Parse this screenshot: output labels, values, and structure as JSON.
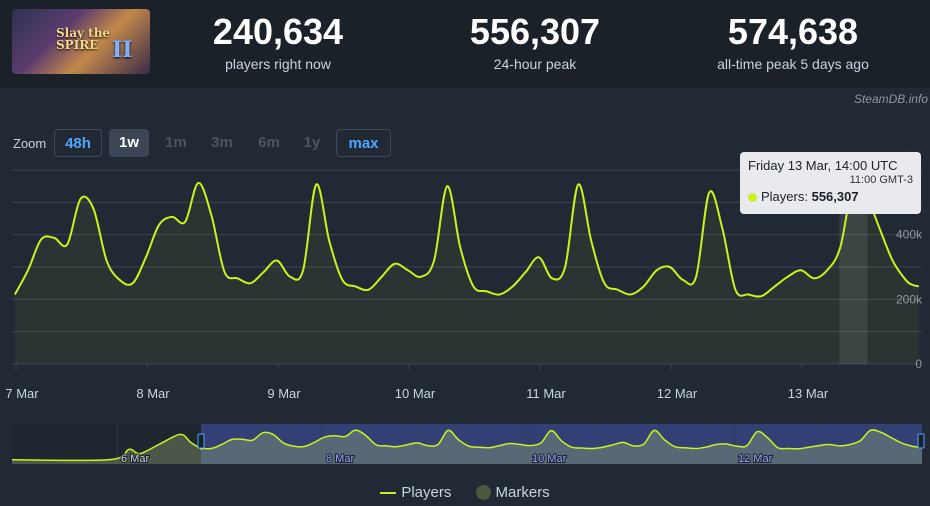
{
  "game": {
    "thumb_title": "Slay the SPIRE",
    "thumb_numeral": "II"
  },
  "stats": [
    {
      "value": "240,634",
      "label": "players right now"
    },
    {
      "value": "556,307",
      "label": "24-hour peak"
    },
    {
      "value": "574,638",
      "label": "all-time peak 5 days ago"
    }
  ],
  "source": "SteamDB.info",
  "zoom": {
    "label": "Zoom",
    "options": [
      {
        "label": "48h",
        "state": "link"
      },
      {
        "label": "1w",
        "state": "active"
      },
      {
        "label": "1m",
        "state": "dim"
      },
      {
        "label": "3m",
        "state": "dim"
      },
      {
        "label": "6m",
        "state": "dim"
      },
      {
        "label": "1y",
        "state": "dim"
      },
      {
        "label": "max",
        "state": "link"
      }
    ]
  },
  "tooltip": {
    "date": "Friday 13 Mar, 14:00 UTC",
    "local": "11:00 GMT-3",
    "series": "Players",
    "value": "556,307"
  },
  "legend": {
    "players": "Players",
    "markers": "Markers"
  },
  "colors": {
    "line": "#c9f31d",
    "background": "#212934",
    "navigator_selection": "#3a4a8c"
  },
  "chart_data": {
    "type": "line",
    "xlabel": "",
    "ylabel": "",
    "x_ticks": [
      "7 Mar",
      "8 Mar",
      "9 Mar",
      "10 Mar",
      "11 Mar",
      "12 Mar",
      "13 Mar"
    ],
    "y_ticks": [
      "0",
      "200k",
      "400k"
    ],
    "ylim": [
      0,
      600000
    ],
    "grid": true,
    "series": [
      {
        "name": "Players",
        "x_days": [
          -0.2,
          -0.1,
          0.0,
          0.1,
          0.2,
          0.3,
          0.4,
          0.5,
          0.6,
          0.7,
          0.8,
          0.9,
          1.0,
          1.1,
          1.2,
          1.3,
          1.4,
          1.5,
          1.6,
          1.7,
          1.8,
          1.9,
          2.0,
          2.1,
          2.2,
          2.3,
          2.4,
          2.5,
          2.6,
          2.7,
          2.8,
          2.9,
          3.0,
          3.1,
          3.2,
          3.3,
          3.4,
          3.5,
          3.6,
          3.7,
          3.8,
          3.9,
          4.0,
          4.1,
          4.2,
          4.3,
          4.4,
          4.5,
          4.6,
          4.7,
          4.8,
          4.9,
          5.0,
          5.1,
          5.2,
          5.3,
          5.4,
          5.5,
          5.6,
          5.7,
          5.8,
          5.9,
          6.0,
          6.1,
          6.2,
          6.3,
          6.4,
          6.5,
          6.6,
          6.7,
          6.75,
          6.8
        ],
        "values": [
          220000,
          215000,
          290000,
          385000,
          390000,
          370000,
          510000,
          480000,
          320000,
          260000,
          250000,
          330000,
          430000,
          455000,
          440000,
          560000,
          460000,
          285000,
          265000,
          250000,
          285000,
          320000,
          270000,
          290000,
          555000,
          380000,
          260000,
          240000,
          230000,
          270000,
          310000,
          290000,
          270000,
          320000,
          550000,
          360000,
          240000,
          225000,
          215000,
          240000,
          285000,
          330000,
          265000,
          300000,
          555000,
          380000,
          250000,
          230000,
          215000,
          240000,
          290000,
          300000,
          260000,
          270000,
          530000,
          420000,
          230000,
          215000,
          210000,
          240000,
          270000,
          290000,
          265000,
          290000,
          360000,
          556307,
          520000,
          420000,
          320000,
          260000,
          245000,
          240000
        ]
      }
    ],
    "peak_highlight": {
      "x_label": "Friday 13 Mar, 14:00 UTC",
      "value": 556307
    },
    "navigator": {
      "x_labels": [
        "6 Mar",
        "8 Mar",
        "10 Mar",
        "12 Mar"
      ]
    }
  }
}
